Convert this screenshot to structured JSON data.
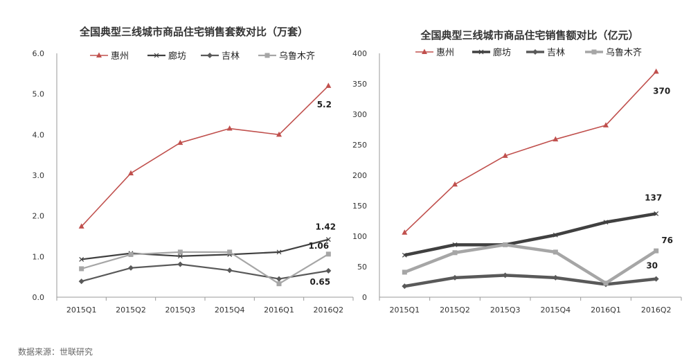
{
  "source_note": "数据来源：世联研究",
  "chart_data": [
    {
      "type": "line",
      "title": "全国典型三线城市商品住宅销售套数对比（万套）",
      "categories": [
        "2015Q1",
        "2015Q2",
        "2015Q3",
        "2015Q4",
        "2016Q1",
        "2016Q2"
      ],
      "ylim": [
        0,
        6
      ],
      "yticks": [
        "0.0",
        "1.0",
        "2.0",
        "3.0",
        "4.0",
        "5.0",
        "6.0"
      ],
      "ytick_values": [
        0,
        1,
        2,
        3,
        4,
        5,
        6
      ],
      "legend_position": "top",
      "series": [
        {
          "name": "惠州",
          "values": [
            1.74,
            3.05,
            3.8,
            4.15,
            4.0,
            5.2
          ],
          "color": "#C0504D",
          "marker": "triangle",
          "end_label": "5.2"
        },
        {
          "name": "廊坊",
          "values": [
            0.93,
            1.08,
            1.01,
            1.05,
            1.11,
            1.42
          ],
          "color": "#404040",
          "marker": "x",
          "end_label": "1.42"
        },
        {
          "name": "吉林",
          "values": [
            0.39,
            0.72,
            0.81,
            0.66,
            0.45,
            0.65
          ],
          "color": "#595959",
          "marker": "diamond",
          "end_label": "0.65"
        },
        {
          "name": "乌鲁木齐",
          "values": [
            0.7,
            1.05,
            1.11,
            1.11,
            0.33,
            1.06
          ],
          "color": "#A6A6A6",
          "marker": "square",
          "end_label": "1.06"
        }
      ]
    },
    {
      "type": "line",
      "title": "全国典型三线城市商品住宅销售额对比（亿元）",
      "categories": [
        "2015Q1",
        "2015Q2",
        "2015Q3",
        "2015Q4",
        "2016Q1",
        "2016Q2"
      ],
      "ylim": [
        0,
        400
      ],
      "yticks": [
        "0",
        "50",
        "100",
        "150",
        "200",
        "250",
        "300",
        "350",
        "400"
      ],
      "ytick_values": [
        0,
        50,
        100,
        150,
        200,
        250,
        300,
        350,
        400
      ],
      "legend_position": "top",
      "series": [
        {
          "name": "惠州",
          "values": [
            106,
            185,
            232,
            259,
            282,
            370
          ],
          "color": "#C0504D",
          "marker": "triangle",
          "end_label": "370"
        },
        {
          "name": "廊坊",
          "values": [
            69,
            86,
            86,
            102,
            123,
            137
          ],
          "color": "#404040",
          "marker": "x",
          "end_label": "137"
        },
        {
          "name": "吉林",
          "values": [
            18,
            32,
            36,
            32,
            21,
            30
          ],
          "color": "#595959",
          "marker": "diamond",
          "end_label": "30"
        },
        {
          "name": "乌鲁木齐",
          "values": [
            41,
            73,
            86,
            74,
            23,
            76
          ],
          "color": "#A6A6A6",
          "marker": "square",
          "end_label": "76"
        }
      ]
    }
  ]
}
